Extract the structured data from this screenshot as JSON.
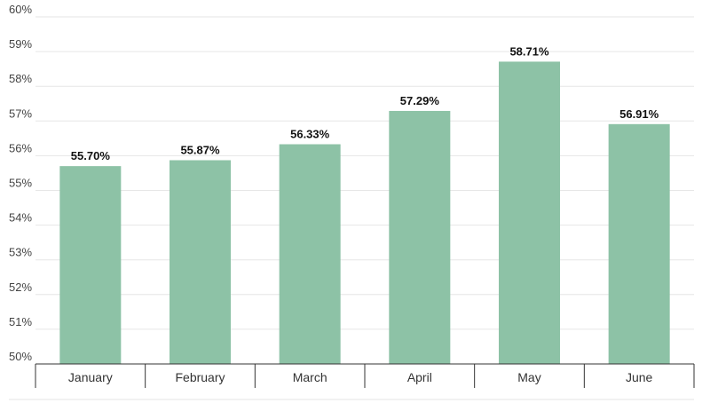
{
  "chart_data": {
    "type": "bar",
    "title": "",
    "xlabel": "",
    "ylabel": "",
    "categories": [
      "January",
      "February",
      "March",
      "April",
      "May",
      "June"
    ],
    "values": [
      55.7,
      55.87,
      56.33,
      57.29,
      58.71,
      56.91
    ],
    "value_labels": [
      "55.70%",
      "55.87%",
      "56.33%",
      "57.29%",
      "58.71%",
      "56.91%"
    ],
    "ylim": [
      50,
      60
    ],
    "yticks": [
      50,
      51,
      52,
      53,
      54,
      55,
      56,
      57,
      58,
      59,
      60
    ],
    "ytick_labels": [
      "50%",
      "51%",
      "52%",
      "53%",
      "54%",
      "55%",
      "56%",
      "57%",
      "58%",
      "59%",
      "60%"
    ],
    "grid": true,
    "legend": "none",
    "bar_color": "#8dc2a6"
  }
}
